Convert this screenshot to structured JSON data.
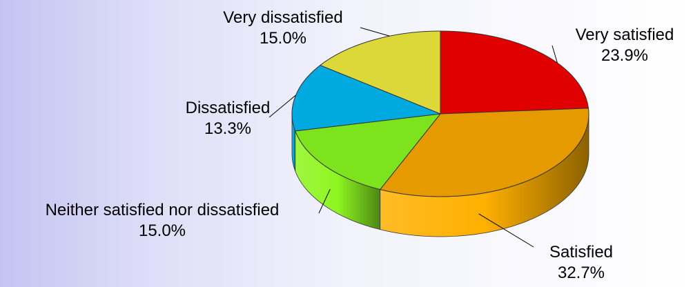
{
  "chart_data": {
    "type": "pie",
    "title": "",
    "slices": [
      {
        "label": "Very satisfied",
        "value": 23.9,
        "value_label": "23.9%",
        "color": "#e00000"
      },
      {
        "label": "Satisfied",
        "value": 32.7,
        "value_label": "32.7%",
        "color": "#e59a00"
      },
      {
        "label": "Neither satisfied nor dissatisfied",
        "value": 15.0,
        "value_label": "15.0%",
        "color": "#7de31c"
      },
      {
        "label": "Dissatisfied",
        "value": 13.3,
        "value_label": "13.3%",
        "color": "#00aae0"
      },
      {
        "label": "Very dissatisfied",
        "value": 15.0,
        "value_label": "15.0%",
        "color": "#dcd83a"
      }
    ],
    "style": "3d"
  }
}
